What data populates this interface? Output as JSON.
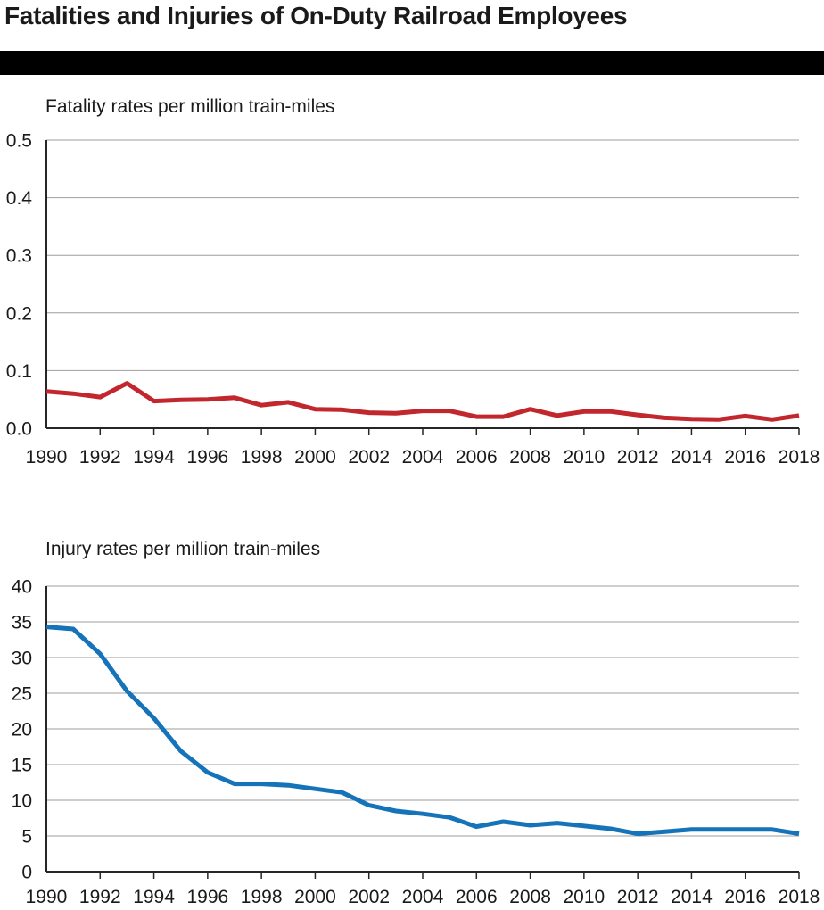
{
  "figure": {
    "title": "Fatalities and Injuries of On-Duty Railroad Employees"
  },
  "colors": {
    "fatality_line": "#c1272d",
    "injury_line": "#1473b9",
    "gridline": "#9e9e9e",
    "axis": "#262626",
    "title_band": "#000000",
    "text": "#1a1a1a"
  },
  "chart_data": [
    {
      "type": "line",
      "title": "Fatality rates per million train-miles",
      "xlabel": "",
      "ylabel": "Fatality rates per million train-miles",
      "grid": true,
      "legend": "none",
      "ylim": [
        0,
        0.5
      ],
      "yticks": [
        0,
        0.1,
        0.2,
        0.3,
        0.4,
        0.5
      ],
      "ytick_labels": [
        "0.0",
        "0.1",
        "0.2",
        "0.3",
        "0.4",
        "0.5"
      ],
      "xticks": [
        1990,
        1992,
        1994,
        1996,
        1998,
        2000,
        2002,
        2004,
        2006,
        2008,
        2010,
        2012,
        2014,
        2016,
        2018
      ],
      "xtick_labels": [
        "1990",
        "1992",
        "1994",
        "1996",
        "1998",
        "2000",
        "2002",
        "2004",
        "2006",
        "2008",
        "2010",
        "2012",
        "2014",
        "2016",
        "2018"
      ],
      "x": [
        1990,
        1991,
        1992,
        1993,
        1994,
        1995,
        1996,
        1997,
        1998,
        1999,
        2000,
        2001,
        2002,
        2003,
        2004,
        2005,
        2006,
        2007,
        2008,
        2009,
        2010,
        2011,
        2012,
        2013,
        2014,
        2015,
        2016,
        2017,
        2018
      ],
      "series": [
        {
          "name": "Fatality rate",
          "color": "#c1272d",
          "values": [
            0.064,
            0.06,
            0.054,
            0.078,
            0.047,
            0.049,
            0.05,
            0.053,
            0.04,
            0.045,
            0.033,
            0.032,
            0.027,
            0.026,
            0.03,
            0.03,
            0.02,
            0.02,
            0.033,
            0.022,
            0.029,
            0.029,
            0.023,
            0.018,
            0.016,
            0.015,
            0.021,
            0.015,
            0.022
          ]
        }
      ]
    },
    {
      "type": "line",
      "title": "Injury rates per million train-miles",
      "xlabel": "",
      "ylabel": "Injury rates per million train-miles",
      "grid": true,
      "legend": "none",
      "ylim": [
        0,
        40
      ],
      "yticks": [
        0,
        5,
        10,
        15,
        20,
        25,
        30,
        35,
        40
      ],
      "ytick_labels": [
        "0",
        "5",
        "10",
        "15",
        "20",
        "25",
        "30",
        "35",
        "40"
      ],
      "xticks": [
        1990,
        1992,
        1994,
        1996,
        1998,
        2000,
        2002,
        2004,
        2006,
        2008,
        2010,
        2012,
        2014,
        2016,
        2018
      ],
      "xtick_labels": [
        "1990",
        "1992",
        "1994",
        "1996",
        "1998",
        "2000",
        "2002",
        "2004",
        "2006",
        "2008",
        "2010",
        "2012",
        "2014",
        "2016",
        "2018"
      ],
      "x": [
        1990,
        1991,
        1992,
        1993,
        1994,
        1995,
        1996,
        1997,
        1998,
        1999,
        2000,
        2001,
        2002,
        2003,
        2004,
        2005,
        2006,
        2007,
        2008,
        2009,
        2010,
        2011,
        2012,
        2013,
        2014,
        2015,
        2016,
        2017,
        2018
      ],
      "series": [
        {
          "name": "Injury rate",
          "color": "#1473b9",
          "values": [
            34.3,
            34.0,
            30.5,
            25.3,
            21.5,
            16.9,
            13.9,
            12.3,
            12.3,
            12.1,
            11.6,
            11.1,
            9.3,
            8.5,
            8.1,
            7.6,
            6.3,
            7.0,
            6.5,
            6.8,
            6.4,
            6.0,
            5.3,
            5.6,
            5.9,
            5.9,
            5.9,
            5.9,
            5.3
          ]
        }
      ]
    }
  ]
}
